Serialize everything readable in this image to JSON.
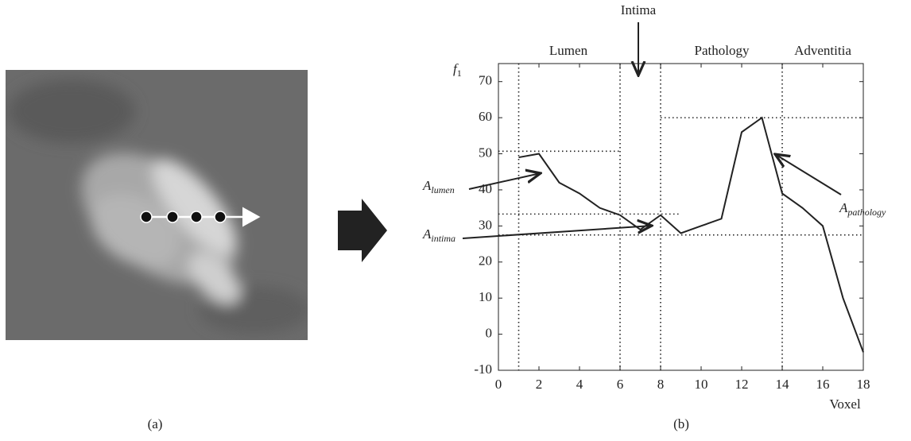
{
  "panel_a": {
    "caption": "(a)"
  },
  "chart_data": {
    "type": "line",
    "caption": "(b)",
    "y_label": {
      "main": "f",
      "sub": "1"
    },
    "x_label": "Voxel",
    "x": [
      1,
      2,
      3,
      4,
      5,
      6,
      7,
      8,
      9,
      10,
      11,
      12,
      13,
      14,
      15,
      16,
      17,
      18
    ],
    "series": [
      {
        "color": "#222222",
        "values": [
          49,
          50,
          42,
          39,
          35,
          33,
          29,
          33,
          28,
          30,
          32,
          56,
          60,
          39,
          35,
          30,
          10,
          -5
        ]
      }
    ],
    "xlim": [
      0,
      18
    ],
    "xticks": [
      0,
      2,
      4,
      6,
      8,
      10,
      12,
      14,
      16,
      18
    ],
    "ylim": [
      -10,
      75
    ],
    "yticks": [
      -10,
      0,
      10,
      20,
      30,
      40,
      50,
      60,
      70
    ],
    "vertical_lines": [
      1,
      6,
      8,
      14
    ],
    "horizontal_lines": [
      {
        "y": 50.7,
        "from": 0,
        "to": 6
      },
      {
        "y": 60,
        "from": 8,
        "to": 18
      },
      {
        "y": 33.3,
        "from": 0,
        "to": 9
      },
      {
        "y": 27.5,
        "from": 0,
        "to": 18
      }
    ],
    "regions": [
      "Lumen",
      "Intima",
      "Pathology",
      "Adventitia"
    ],
    "annotations": [
      {
        "main": "A",
        "sub": "lumen"
      },
      {
        "main": "A",
        "sub": "intima"
      },
      {
        "main": "A",
        "sub": "pathology"
      }
    ]
  }
}
